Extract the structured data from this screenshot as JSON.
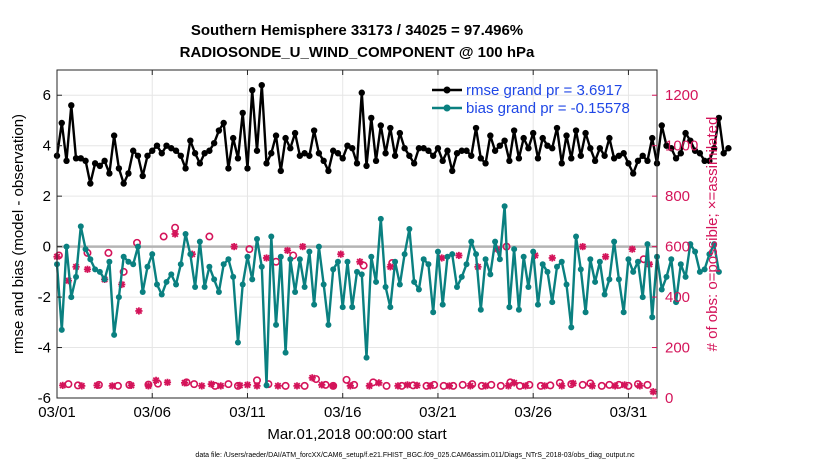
{
  "title": {
    "line1": "Southern Hemisphere 33173 / 34025 = 97.496%",
    "line2": "RADIOSONDE_U_WIND_COMPONENT @ 100 hPa"
  },
  "footnote": "data file: /Users/raeder/DAI/ATM_forcXX/CAM6_setup/f.e21.FHIST_BGC.f09_025.CAM6assim.011/Diags_NTrS_2018-03/obs_diag_output.nc",
  "colors": {
    "rmse": "#000000",
    "bias": "#0a8080",
    "obs": "#d4145a",
    "zero_line": "#b4b4b4",
    "grid": "#e6e6e6"
  },
  "chart_data": {
    "type": "line",
    "title": "Southern Hemisphere 33173 / 34025 = 97.496%  RADIOSONDE_U_WIND_COMPONENT @ 100 hPa",
    "xlabel": "Mar.01,2018 00:00:00 start",
    "ylabel": "rmse and bias (model - observation)",
    "y2label": "# of obs: o=possible; ×=assimilated",
    "x_range": [
      1,
      32.5
    ],
    "ylim": [
      -6,
      7
    ],
    "y2lim": [
      0,
      1300
    ],
    "xticks": [
      1,
      6,
      11,
      16,
      21,
      26,
      31
    ],
    "xtick_labels": [
      "03/01",
      "03/06",
      "03/11",
      "03/16",
      "03/21",
      "03/26",
      "03/31"
    ],
    "yticks": [
      -6,
      -4,
      -2,
      0,
      2,
      4,
      6
    ],
    "ytick_labels": [
      "-6",
      "-4",
      "-2",
      "0",
      "2",
      "4",
      "6"
    ],
    "y2ticks": [
      0,
      200,
      400,
      600,
      800,
      1000,
      1200
    ],
    "y2tick_labels": [
      "0",
      "200",
      "400",
      "600",
      "800",
      "1000",
      "1200"
    ],
    "legend": {
      "position": "top-right",
      "entries": [
        "rmse grand pr = 3.6917",
        "bias grand pr = -0.15578"
      ]
    },
    "series": [
      {
        "name": "rmse grand pr = 3.6917",
        "axis": "left",
        "style": "line-marker",
        "x0": 1,
        "dx": 0.25,
        "values": [
          3.6,
          4.9,
          3.4,
          5.6,
          3.5,
          3.5,
          3.4,
          2.5,
          3.3,
          3.2,
          3.4,
          2.9,
          4.4,
          3.1,
          2.5,
          2.9,
          3.8,
          3.6,
          2.8,
          3.6,
          3.8,
          4.0,
          3.7,
          4.0,
          3.9,
          3.8,
          3.6,
          3.1,
          4.2,
          3.7,
          3.3,
          3.7,
          3.8,
          4.1,
          4.6,
          4.9,
          3.1,
          4.3,
          3.5,
          5.3,
          3.1,
          6.2,
          3.8,
          6.4,
          3.3,
          3.7,
          4.4,
          3.0,
          4.3,
          3.9,
          4.5,
          3.6,
          3.7,
          3.6,
          4.6,
          3.7,
          3.4,
          3.0,
          3.8,
          3.7,
          3.5,
          4.0,
          3.9,
          3.3,
          6.1,
          3.2,
          5.1,
          3.4,
          4.8,
          3.7,
          4.7,
          3.6,
          4.5,
          3.9,
          3.6,
          3.3,
          3.9,
          3.9,
          3.8,
          3.6,
          3.9,
          3.4,
          3.8,
          3.0,
          3.7,
          3.8,
          3.8,
          3.6,
          4.7,
          3.5,
          3.3,
          4.4,
          3.8,
          4.0,
          4.2,
          3.4,
          4.6,
          3.5,
          4.3,
          3.9,
          4.5,
          3.5,
          4.3,
          4.0,
          3.9,
          4.7,
          3.3,
          4.4,
          3.5,
          4.6,
          3.6,
          4.5,
          3.9,
          3.4,
          3.9,
          3.6,
          4.3,
          3.5,
          3.6,
          3.7,
          3.3,
          2.9,
          3.4,
          3.6,
          3.4,
          4.3,
          3.3,
          4.8,
          4.0,
          3.9,
          3.5,
          3.7,
          4.5,
          4.2,
          3.8,
          3.7,
          3.4,
          3.4,
          3.9,
          5.1,
          3.7,
          3.9
        ]
      },
      {
        "name": "bias grand pr = -0.15578",
        "axis": "left",
        "style": "line-marker",
        "x0": 1,
        "dx": 0.25,
        "values": [
          -0.7,
          -3.3,
          0.0,
          -2.0,
          -1.2,
          0.8,
          -0.1,
          -0.5,
          -0.9,
          -1.0,
          -1.3,
          -0.6,
          -3.5,
          -2.0,
          -0.4,
          -0.6,
          -0.7,
          0.0,
          -1.8,
          -0.8,
          -0.3,
          -1.5,
          -1.9,
          -1.4,
          -1.1,
          -1.5,
          -0.7,
          0.5,
          -0.3,
          -1.6,
          0.2,
          -1.6,
          -0.8,
          -1.3,
          -1.8,
          -0.7,
          -0.5,
          -1.2,
          -3.8,
          -1.5,
          -0.4,
          -1.3,
          0.3,
          -0.8,
          -5.5,
          0.4,
          -3.1,
          -0.4,
          -4.2,
          -0.5,
          -1.8,
          -0.5,
          -1.6,
          -0.2,
          -2.3,
          0.0,
          -1.5,
          -3.1,
          -0.9,
          -0.6,
          -2.4,
          -0.6,
          -2.4,
          -1.0,
          -1.1,
          -4.4,
          -0.4,
          -1.4,
          1.1,
          -1.6,
          -2.4,
          -0.6,
          -1.5,
          -0.3,
          0.7,
          -1.4,
          -1.7,
          -0.5,
          -0.7,
          -2.6,
          -0.2,
          -2.3,
          -0.4,
          -0.3,
          -1.6,
          -1.2,
          -0.7,
          0.2,
          -0.3,
          -2.5,
          -0.5,
          -1.1,
          0.2,
          -0.5,
          1.6,
          -2.4,
          -0.1,
          -2.5,
          -0.4,
          -1.6,
          -0.2,
          -2.3,
          -0.7,
          -1.0,
          -2.2,
          -0.8,
          -0.6,
          -1.5,
          -3.2,
          0.4,
          -0.9,
          -2.6,
          -0.5,
          -1.4,
          -0.6,
          -1.9,
          -1.3,
          0.2,
          -1.3,
          -2.6,
          -0.5,
          -1.0,
          -0.6,
          -2.0,
          0.1,
          -2.8,
          -0.4,
          -1.7,
          -1.2,
          -0.5,
          -2.2,
          -0.7,
          -1.2,
          0.1,
          -0.2,
          -1.0,
          -0.9,
          -0.3,
          0.1,
          -1.0
        ]
      },
      {
        "name": "possible obs",
        "axis": "right",
        "style": "circle",
        "points": [
          [
            1.1,
            565
          ],
          [
            1.6,
            55
          ],
          [
            2.1,
            50
          ],
          [
            2.6,
            575
          ],
          [
            3.2,
            52
          ],
          [
            3.7,
            575
          ],
          [
            4.2,
            48
          ],
          [
            4.5,
            500
          ],
          [
            4.8,
            52
          ],
          [
            5.2,
            615
          ],
          [
            5.8,
            53
          ],
          [
            6.3,
            57
          ],
          [
            6.6,
            640
          ],
          [
            7.2,
            675
          ],
          [
            7.8,
            62
          ],
          [
            8.2,
            55
          ],
          [
            9.0,
            640
          ],
          [
            9.3,
            48
          ],
          [
            10.0,
            55
          ],
          [
            10.5,
            48
          ],
          [
            11.1,
            590
          ],
          [
            11.5,
            70
          ],
          [
            12.1,
            55
          ],
          [
            12.5,
            540
          ],
          [
            13.0,
            48
          ],
          [
            13.4,
            565
          ],
          [
            14.0,
            48
          ],
          [
            14.6,
            75
          ],
          [
            15.1,
            52
          ],
          [
            15.5,
            48
          ],
          [
            16.2,
            72
          ],
          [
            16.6,
            52
          ],
          [
            17.1,
            525
          ],
          [
            17.6,
            62
          ],
          [
            18.3,
            48
          ],
          [
            18.6,
            535
          ],
          [
            19.1,
            48
          ],
          [
            19.7,
            50
          ],
          [
            20.4,
            48
          ],
          [
            20.8,
            52
          ],
          [
            21.3,
            48
          ],
          [
            21.8,
            48
          ],
          [
            22.3,
            52
          ],
          [
            22.8,
            55
          ],
          [
            23.3,
            48
          ],
          [
            23.8,
            52
          ],
          [
            24.3,
            48
          ],
          [
            24.6,
            600
          ],
          [
            24.8,
            62
          ],
          [
            25.3,
            48
          ],
          [
            25.8,
            52
          ],
          [
            26.4,
            48
          ],
          [
            26.9,
            50
          ],
          [
            27.4,
            60
          ],
          [
            28.0,
            55
          ],
          [
            28.6,
            52
          ],
          [
            29.0,
            58
          ],
          [
            29.6,
            48
          ],
          [
            30.0,
            52
          ],
          [
            30.5,
            52
          ],
          [
            31.0,
            48
          ],
          [
            31.5,
            55
          ],
          [
            31.8,
            550
          ],
          [
            32.0,
            52
          ]
        ]
      },
      {
        "name": "assimilated obs",
        "axis": "right",
        "style": "cross",
        "points": [
          [
            1.0,
            560
          ],
          [
            1.3,
            50
          ],
          [
            1.6,
            465
          ],
          [
            2.0,
            520
          ],
          [
            2.3,
            48
          ],
          [
            2.6,
            510
          ],
          [
            3.1,
            50
          ],
          [
            3.5,
            470
          ],
          [
            3.9,
            48
          ],
          [
            4.4,
            450
          ],
          [
            4.9,
            50
          ],
          [
            5.3,
            345
          ],
          [
            5.8,
            48
          ],
          [
            6.2,
            70
          ],
          [
            6.8,
            62
          ],
          [
            7.2,
            650
          ],
          [
            7.7,
            60
          ],
          [
            8.1,
            570
          ],
          [
            8.6,
            48
          ],
          [
            9.1,
            55
          ],
          [
            9.6,
            48
          ],
          [
            10.3,
            600
          ],
          [
            10.6,
            50
          ],
          [
            11.0,
            52
          ],
          [
            11.5,
            48
          ],
          [
            12.0,
            555
          ],
          [
            12.6,
            48
          ],
          [
            13.1,
            585
          ],
          [
            13.6,
            48
          ],
          [
            13.9,
            600
          ],
          [
            14.4,
            80
          ],
          [
            14.9,
            52
          ],
          [
            15.5,
            48
          ],
          [
            15.9,
            570
          ],
          [
            16.4,
            48
          ],
          [
            16.9,
            540
          ],
          [
            17.4,
            48
          ],
          [
            17.9,
            60
          ],
          [
            18.5,
            520
          ],
          [
            18.9,
            48
          ],
          [
            19.4,
            52
          ],
          [
            19.9,
            50
          ],
          [
            20.6,
            48
          ],
          [
            21.2,
            555
          ],
          [
            21.6,
            48
          ],
          [
            22.1,
            565
          ],
          [
            22.7,
            48
          ],
          [
            23.1,
            520
          ],
          [
            23.5,
            48
          ],
          [
            24.1,
            590
          ],
          [
            24.7,
            48
          ],
          [
            25.0,
            60
          ],
          [
            25.6,
            48
          ],
          [
            26.1,
            565
          ],
          [
            26.6,
            48
          ],
          [
            27.0,
            555
          ],
          [
            27.5,
            48
          ],
          [
            28.1,
            58
          ],
          [
            28.6,
            600
          ],
          [
            29.1,
            48
          ],
          [
            29.8,
            560
          ],
          [
            30.3,
            48
          ],
          [
            30.8,
            52
          ],
          [
            31.2,
            590
          ],
          [
            31.6,
            48
          ],
          [
            32.1,
            530
          ],
          [
            32.3,
            25
          ]
        ]
      }
    ]
  }
}
